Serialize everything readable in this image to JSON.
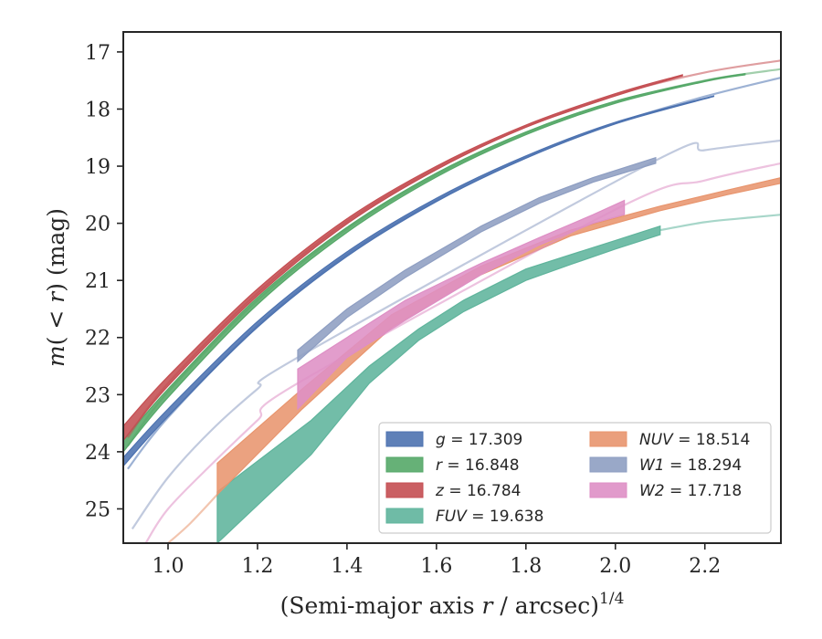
{
  "chart_data": {
    "type": "line",
    "xlabel": "(Semi-major axis r / arcsec)",
    "xlabel_parts": {
      "pre": "(Semi-major axis ",
      "var": "r",
      "post": " / arcsec)",
      "sup": "1/4"
    },
    "ylabel": "m(< r) (mag)",
    "ylabel_parts": {
      "var": "m",
      "open": "(",
      "lt": " < ",
      "r": "r",
      "close": ") (mag)"
    },
    "xlim": [
      0.9,
      2.37
    ],
    "ylim": [
      25.6,
      16.65
    ],
    "y_inverted": true,
    "grid": false,
    "legend_position": "lower-right",
    "xticks": [
      1.0,
      1.2,
      1.4,
      1.6,
      1.8,
      2.0,
      2.2
    ],
    "xtick_labels": [
      "1.0",
      "1.2",
      "1.4",
      "1.6",
      "1.8",
      "2.0",
      "2.2"
    ],
    "yticks": [
      17,
      18,
      19,
      20,
      21,
      22,
      23,
      24,
      25
    ],
    "ytick_labels": [
      "17",
      "18",
      "19",
      "20",
      "21",
      "22",
      "23",
      "24",
      "25"
    ],
    "series": [
      {
        "name": "g = 17.309",
        "band": "g",
        "value": "17.309",
        "italic_band": true,
        "color": "#4c72b0",
        "model_x": [
          0.91,
          1.0,
          1.2,
          1.4,
          1.6,
          1.8,
          2.0,
          2.2,
          2.37
        ],
        "model_y": [
          24.3,
          23.4,
          21.8,
          20.55,
          19.6,
          18.85,
          18.25,
          17.78,
          17.45
        ],
        "band_x": [
          0.9,
          1.0,
          1.2,
          1.4,
          1.6,
          1.8,
          2.0,
          2.22
        ],
        "band_upper": [
          24.1,
          23.25,
          21.72,
          20.5,
          19.56,
          18.82,
          18.23,
          17.77
        ],
        "band_lower": [
          24.25,
          23.38,
          21.82,
          20.58,
          19.62,
          18.86,
          18.26,
          17.78
        ]
      },
      {
        "name": "r = 16.848",
        "band": "r",
        "value": "16.848",
        "italic_band": true,
        "color": "#55a868",
        "model_x": [
          0.91,
          1.0,
          1.2,
          1.4,
          1.6,
          1.8,
          2.0,
          2.2,
          2.37
        ],
        "model_y": [
          23.9,
          22.95,
          21.35,
          20.1,
          19.15,
          18.42,
          17.88,
          17.5,
          17.3
        ],
        "band_x": [
          0.9,
          1.0,
          1.2,
          1.4,
          1.6,
          1.8,
          2.0,
          2.2,
          2.29
        ],
        "band_upper": [
          23.8,
          22.9,
          21.3,
          20.07,
          19.12,
          18.4,
          17.86,
          17.5,
          17.38
        ],
        "band_lower": [
          24.0,
          23.05,
          21.42,
          20.16,
          19.19,
          18.45,
          17.9,
          17.52,
          17.4
        ]
      },
      {
        "name": "z = 16.784",
        "band": "z",
        "value": "16.784",
        "italic_band": true,
        "color": "#c44e52",
        "model_x": [
          0.91,
          1.0,
          1.2,
          1.4,
          1.6,
          1.8,
          2.0,
          2.2,
          2.37
        ],
        "model_y": [
          23.75,
          22.8,
          21.22,
          19.97,
          19.03,
          18.3,
          17.75,
          17.36,
          17.15
        ],
        "band_x": [
          0.9,
          1.0,
          1.2,
          1.4,
          1.6,
          1.8,
          2.0,
          2.15
        ],
        "band_upper": [
          23.55,
          22.68,
          21.15,
          19.92,
          19.0,
          18.28,
          17.73,
          17.4
        ],
        "band_lower": [
          23.8,
          22.85,
          21.27,
          20.01,
          19.06,
          18.32,
          17.77,
          17.42
        ]
      },
      {
        "name": "FUV = 19.638",
        "band": "FUV",
        "value": "19.638",
        "italic_band": true,
        "color": "#5fb49c",
        "model_x": [
          2.1,
          2.2,
          2.3,
          2.37
        ],
        "model_y": [
          20.12,
          19.98,
          19.9,
          19.85
        ],
        "band_x": [
          1.11,
          1.32,
          1.45,
          1.56,
          1.66,
          1.8,
          1.9,
          2.0,
          2.1
        ],
        "band_upper": [
          24.7,
          23.45,
          22.5,
          21.85,
          21.35,
          20.8,
          20.55,
          20.3,
          20.05
        ],
        "band_lower": [
          25.6,
          24.05,
          22.8,
          22.05,
          21.55,
          21.0,
          20.72,
          20.45,
          20.2
        ]
      },
      {
        "name": "NUV = 18.514",
        "band": "NUV",
        "value": "18.514",
        "italic_band": true,
        "color": "#e8956e",
        "model_x": [
          1.0,
          1.05,
          1.11
        ],
        "model_y": [
          25.6,
          25.25,
          24.75
        ],
        "band_x": [
          1.11,
          1.3,
          1.5,
          1.7,
          1.9,
          2.1,
          2.25,
          2.37
        ],
        "band_upper": [
          24.2,
          22.9,
          21.6,
          20.75,
          20.12,
          19.7,
          19.42,
          19.2
        ],
        "band_lower": [
          24.75,
          23.25,
          21.82,
          20.9,
          20.22,
          19.78,
          19.5,
          19.3
        ]
      },
      {
        "name": "W1 = 18.294",
        "band": "W1",
        "value": "18.294",
        "italic_band": true,
        "color": "#8e9ec2",
        "model_x": [
          0.92,
          1.0,
          1.1,
          1.2,
          1.29,
          2.09,
          2.2,
          2.37
        ],
        "model_y": [
          25.35,
          24.45,
          23.6,
          22.9,
          22.35,
          18.9,
          18.72,
          18.55
        ],
        "band_x": [
          1.29,
          1.4,
          1.53,
          1.7,
          1.83,
          1.95,
          2.09
        ],
        "band_upper": [
          22.22,
          21.5,
          20.82,
          20.05,
          19.55,
          19.2,
          18.85
        ],
        "band_lower": [
          22.42,
          21.65,
          20.95,
          20.15,
          19.65,
          19.28,
          18.95
        ]
      },
      {
        "name": "W2 = 17.718",
        "band": "W2",
        "value": "17.718",
        "italic_band": true,
        "color": "#de8fc5",
        "model_x": [
          0.95,
          1.0,
          1.1,
          1.2,
          1.29,
          2.01,
          2.2,
          2.37
        ],
        "model_y": [
          25.6,
          25.0,
          24.2,
          23.45,
          22.8,
          19.72,
          19.25,
          18.95
        ],
        "band_x": [
          1.29,
          1.4,
          1.53,
          1.7,
          1.83,
          1.95,
          2.02
        ],
        "band_upper": [
          22.55,
          22.0,
          21.35,
          20.7,
          20.25,
          19.85,
          19.6
        ],
        "band_lower": [
          23.25,
          22.35,
          21.7,
          20.9,
          20.38,
          20.0,
          19.85
        ]
      }
    ]
  }
}
